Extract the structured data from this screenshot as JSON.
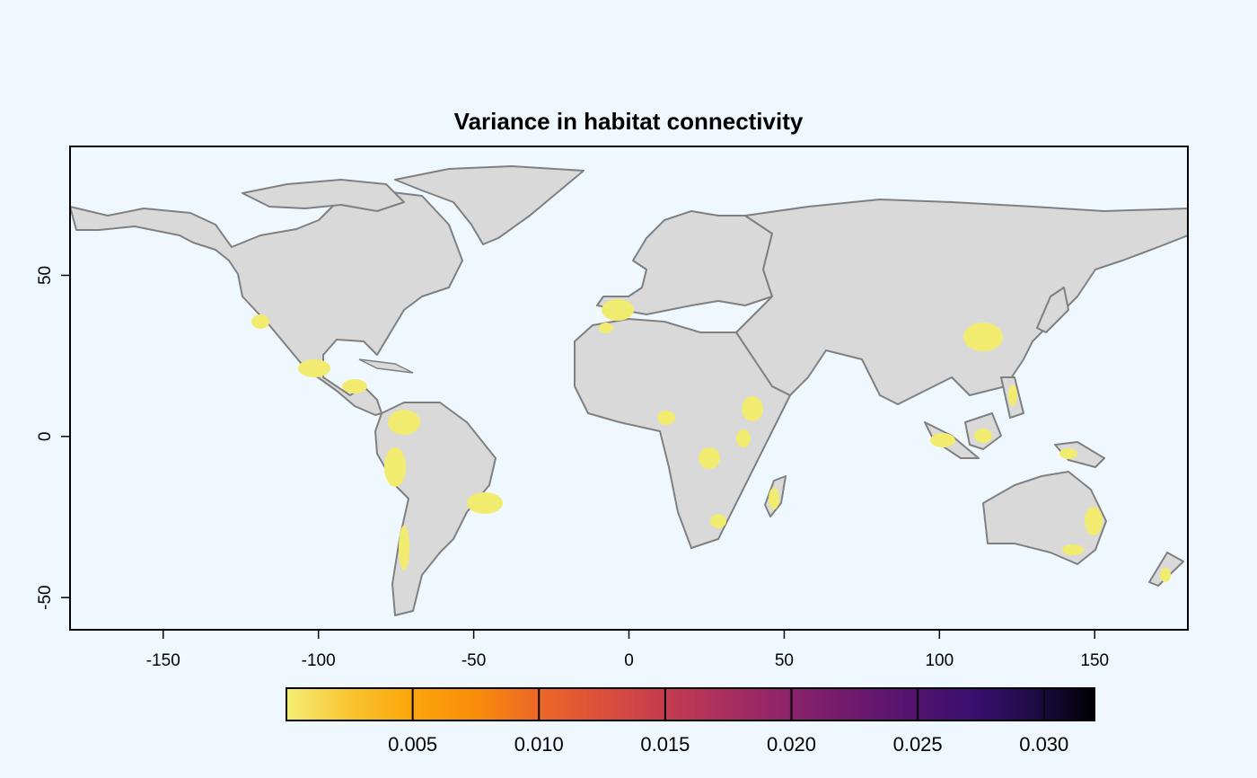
{
  "map": {
    "title": "Variance in habitat connectivity",
    "x_axis": {
      "ticks": [
        "-150",
        "-100",
        "-50",
        "0",
        "50",
        "100",
        "150"
      ],
      "tick_values": [
        -150,
        -100,
        -50,
        0,
        50,
        100,
        150
      ],
      "range": [
        -180,
        180
      ]
    },
    "y_axis": {
      "ticks": [
        "-50",
        "0",
        "50"
      ],
      "tick_values": [
        -50,
        0,
        50
      ],
      "range": [
        -60,
        90
      ]
    },
    "colors": {
      "ocean": "#f0f8ff",
      "land": "#d9d9d9",
      "border": "#808080",
      "habitat_low": "#f1ec70",
      "page_bg": "#f0f8ff"
    },
    "legend": {
      "type": "continuous colorbar",
      "palette": "inferno (reversed)",
      "range": [
        0.0,
        0.032
      ],
      "ticks": [
        "0.005",
        "0.010",
        "0.015",
        "0.020",
        "0.025",
        "0.030"
      ],
      "tick_values": [
        0.005,
        0.01,
        0.015,
        0.02,
        0.025,
        0.03
      ],
      "stops": [
        "#f4ee77",
        "#f9c531",
        "#fca50a",
        "#f98e09",
        "#ed6925",
        "#dd513a",
        "#c63d4d",
        "#ab2f5e",
        "#8f2469",
        "#721a6e",
        "#55136e",
        "#3b0f70",
        "#1f0c48",
        "#000004"
      ]
    }
  }
}
